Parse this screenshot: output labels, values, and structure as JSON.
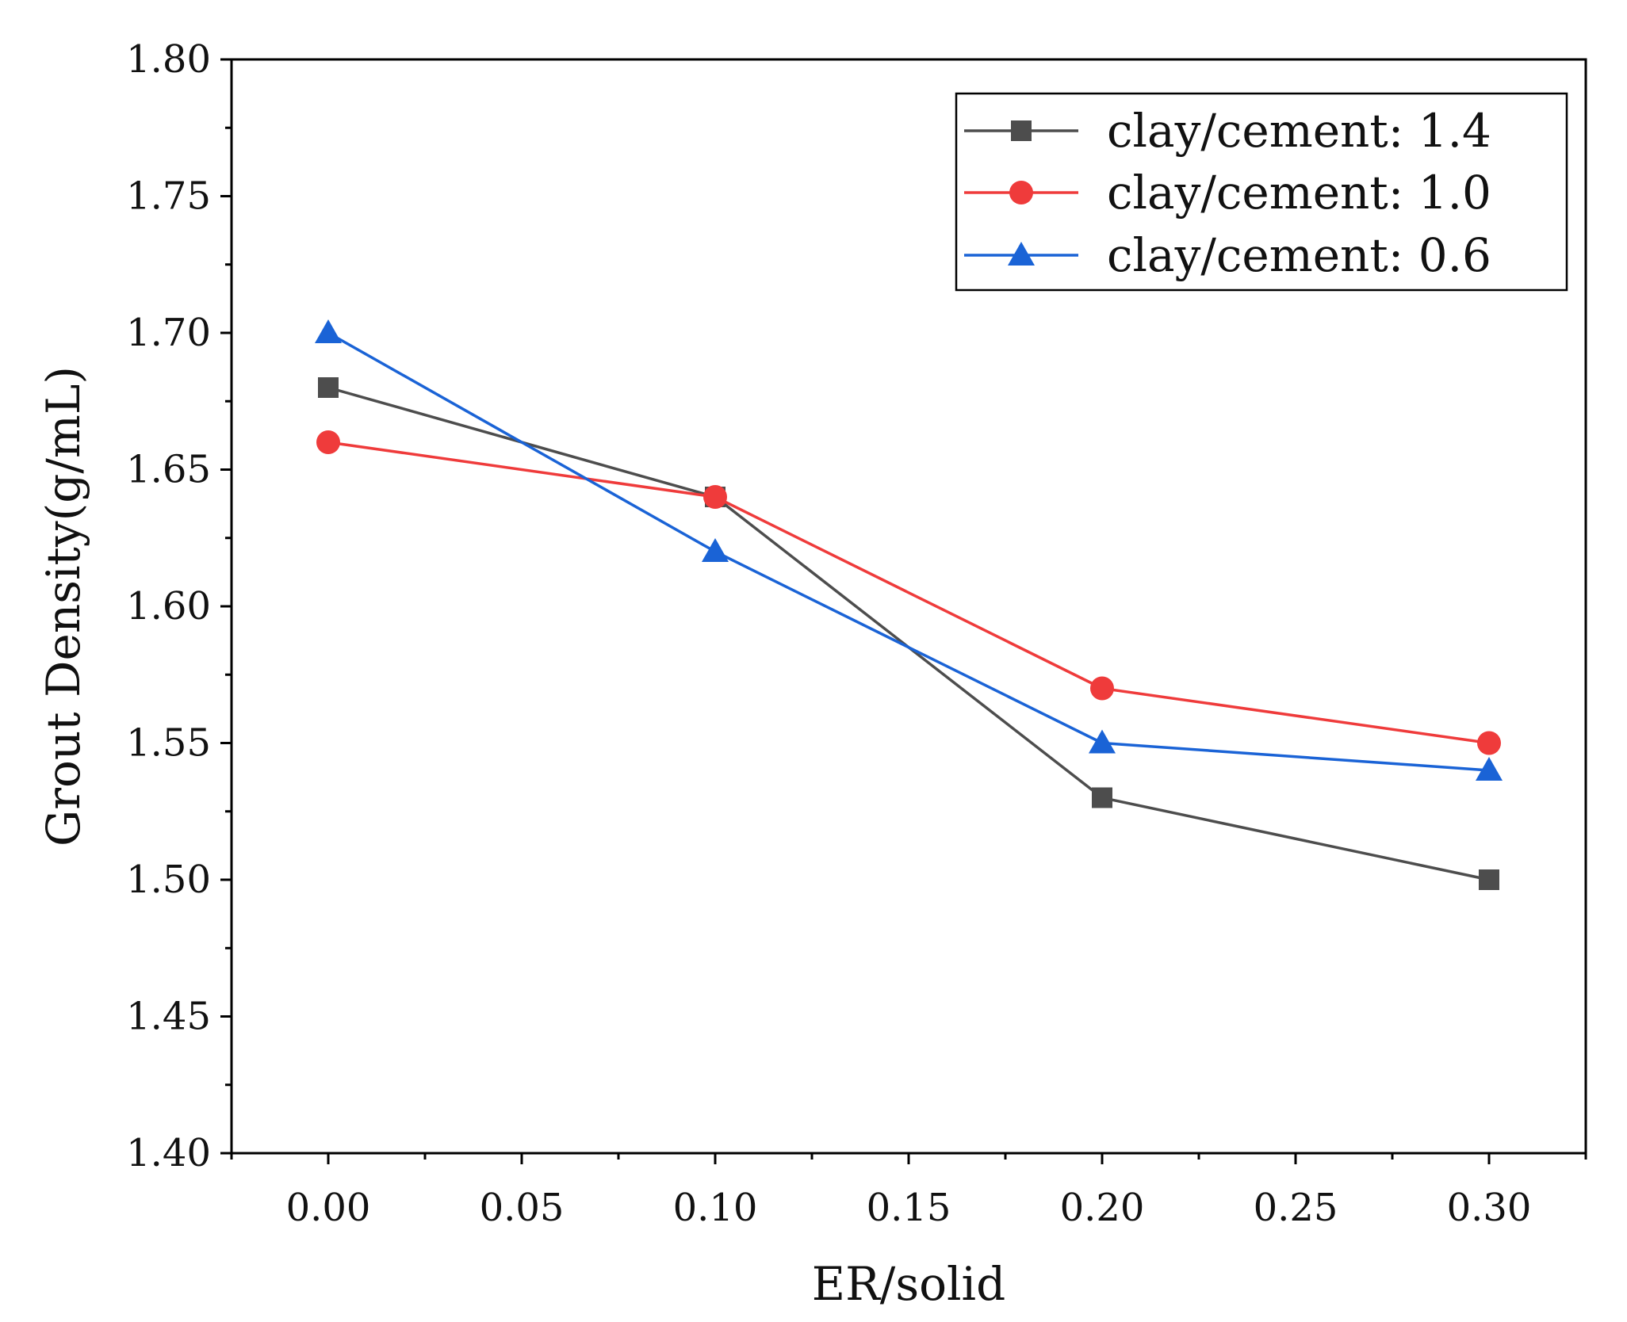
{
  "chart_data": {
    "type": "line",
    "title": "",
    "xlabel": "ER/solid",
    "ylabel": "Grout Density(g/mL)",
    "xlim": [
      -0.025,
      0.325
    ],
    "ylim": [
      1.4,
      1.8
    ],
    "xticks": [
      "0.00",
      "0.05",
      "0.10",
      "0.15",
      "0.20",
      "0.25",
      "0.30"
    ],
    "yticks": [
      "1.40",
      "1.45",
      "1.50",
      "1.55",
      "1.60",
      "1.65",
      "1.70",
      "1.75",
      "1.80"
    ],
    "grid": false,
    "legend_position": "top-right",
    "x": [
      0.0,
      0.1,
      0.2,
      0.3
    ],
    "series": [
      {
        "name": "clay/cement: 1.4",
        "color": "#4d4d4d",
        "marker": "square",
        "values": [
          1.68,
          1.64,
          1.53,
          1.5
        ]
      },
      {
        "name": "clay/cement: 1.0",
        "color": "#ef3b3b",
        "marker": "circle",
        "values": [
          1.66,
          1.64,
          1.57,
          1.55
        ]
      },
      {
        "name": "clay/cement: 0.6",
        "color": "#1a63d6",
        "marker": "triangle",
        "values": [
          1.7,
          1.62,
          1.55,
          1.54
        ]
      }
    ]
  }
}
